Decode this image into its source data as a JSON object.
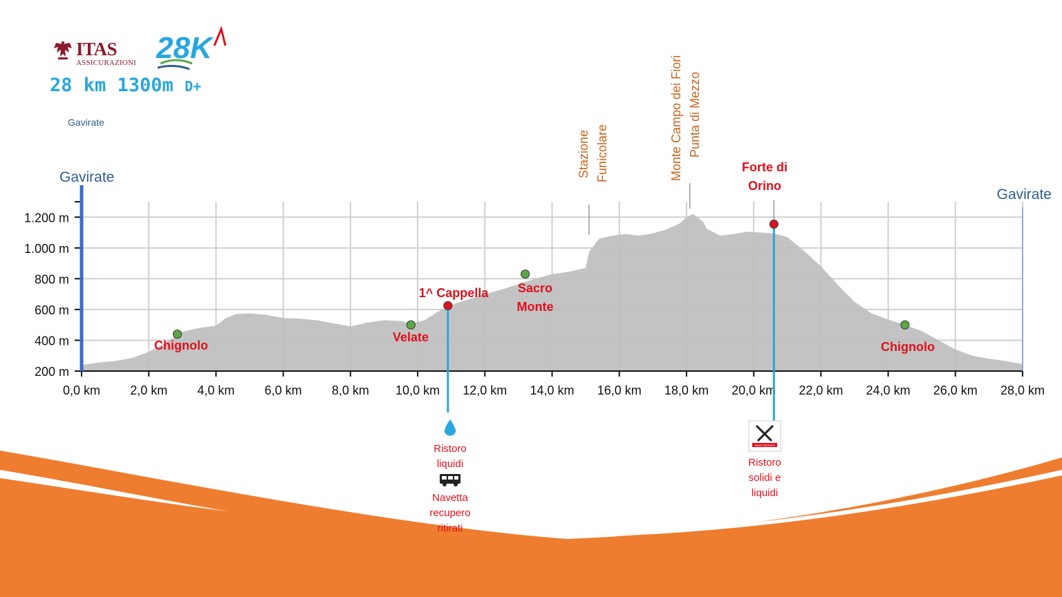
{
  "header": {
    "logo_brand": "ITAS",
    "logo_sub": "ASSICURAZIONI",
    "race_logo": "28K",
    "stats_main": "28 km 1300m ",
    "stats_dplus": "D+",
    "subtitle": "Gavirate"
  },
  "colors": {
    "brand_red": "#8a1c2b",
    "accent_blue": "#2aa6df",
    "profile_fill": "#bdbdbd",
    "label_red": "#e0101e",
    "label_orange": "#c8641e",
    "bottom_orange": "#ee7d2f",
    "point_green": "#5aa846"
  },
  "chart_data": {
    "type": "area",
    "title": "",
    "xlabel": "",
    "ylabel": "",
    "xlim": [
      0,
      28
    ],
    "ylim": [
      200,
      1300
    ],
    "x_ticks": [
      0,
      2,
      4,
      6,
      8,
      10,
      12,
      14,
      16,
      18,
      20,
      22,
      24,
      26,
      28
    ],
    "x_tick_labels": [
      "0,0 km",
      "2,0 km",
      "4,0 km",
      "6,0 km",
      "8,0 km",
      "10,0 km",
      "12,0 km",
      "14,0 km",
      "16,0 km",
      "18,0 km",
      "20,0 km",
      "22,0 km",
      "24,0 km",
      "26,0 km",
      "28,0 km"
    ],
    "y_ticks": [
      200,
      400,
      600,
      800,
      1000,
      1200
    ],
    "y_tick_labels": [
      "200 m",
      "400 m",
      "600 m",
      "800 m",
      "1.000 m",
      "1.200 m"
    ],
    "grid": true,
    "profile": {
      "x": [
        0,
        0.5,
        1,
        1.5,
        2,
        2.5,
        3,
        3.5,
        4,
        4.3,
        4.6,
        5,
        5.5,
        6,
        6.5,
        7,
        7.5,
        8,
        8.2,
        8.5,
        9,
        9.5,
        9.8,
        10.2,
        10.6,
        11,
        11.5,
        12,
        12.5,
        13,
        13.5,
        14,
        14.5,
        15,
        15.1,
        15.4,
        15.8,
        16.2,
        16.6,
        17,
        17.4,
        17.8,
        18,
        18.2,
        18.5,
        18.6,
        19,
        19.4,
        19.8,
        20.2,
        20.6,
        21,
        21.5,
        22,
        22.5,
        23,
        23.5,
        24,
        24.5,
        25,
        25.5,
        26,
        26.5,
        27,
        27.5,
        28
      ],
      "y": [
        240,
        255,
        265,
        285,
        325,
        385,
        455,
        480,
        495,
        545,
        570,
        575,
        565,
        545,
        540,
        530,
        510,
        490,
        500,
        515,
        530,
        525,
        510,
        530,
        585,
        630,
        665,
        700,
        730,
        765,
        800,
        830,
        845,
        870,
        975,
        1060,
        1080,
        1090,
        1080,
        1095,
        1120,
        1160,
        1200,
        1220,
        1170,
        1125,
        1080,
        1090,
        1105,
        1100,
        1095,
        1070,
        980,
        880,
        760,
        650,
        575,
        535,
        500,
        460,
        400,
        340,
        300,
        280,
        265,
        245
      ]
    },
    "points": [
      {
        "name": "Chignolo",
        "x": 2.85,
        "y": 440,
        "kind": "landmark"
      },
      {
        "name": "Velate",
        "x": 9.8,
        "y": 500,
        "kind": "landmark"
      },
      {
        "name": "1^ Cappella",
        "x": 10.9,
        "y": 625,
        "kind": "aid"
      },
      {
        "name": "Sacro Monte",
        "x": 13.2,
        "y": 830,
        "kind": "landmark"
      },
      {
        "name": "Forte di Orino",
        "x": 20.6,
        "y": 1155,
        "kind": "aid"
      },
      {
        "name": "Chignolo",
        "x": 24.5,
        "y": 500,
        "kind": "landmark"
      }
    ],
    "summit_labels": [
      {
        "lines": [
          "Stazione",
          "Funicolare"
        ],
        "x": 15.1
      },
      {
        "lines": [
          "Monte Campo dei Fiori",
          "Punta di Mezzo"
        ],
        "x": 18.1
      }
    ],
    "start_label": "Gavirate",
    "end_label": "Gavirate",
    "aid_stations": [
      {
        "x": 10.9,
        "icon": "water-drop-icon",
        "lines": [
          "Ristoro",
          "liquidi"
        ],
        "extra_icon": "bus-icon",
        "extra_lines": [
          "Navetta",
          "recupero",
          "ritirati"
        ]
      },
      {
        "x": 20.6,
        "icon": "fork-knife-icon",
        "icon_text": "PUNTO RISTORO",
        "lines": [
          "Ristoro",
          "solidi e",
          "liquidi"
        ]
      }
    ]
  }
}
